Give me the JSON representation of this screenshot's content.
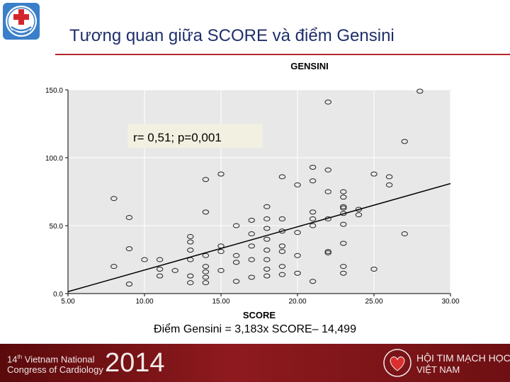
{
  "slide": {
    "title": "Tương quan giữa SCORE và điểm Gensini",
    "equation": "Điểm Gensini = 3,183x SCORE– 14,499",
    "accent_color": "#b5262c"
  },
  "footer": {
    "line1_prefix": "14",
    "line1_sup": "th",
    "line1_rest": " Vietnam National",
    "line2": "Congress of Cardiology",
    "year": "2014",
    "org_line1": "HỘI TIM MẠCH HỌC",
    "org_line2": "VIỆT NAM"
  },
  "chart_data": {
    "type": "scatter",
    "ylabel": "GENSINI",
    "xlabel": "SCORE",
    "xlim": [
      5,
      30
    ],
    "ylim": [
      0,
      150
    ],
    "xticks": [
      "5.00",
      "10.00",
      "15.00",
      "20.00",
      "25.00",
      "30.00"
    ],
    "yticks": [
      "0.0",
      "50.0",
      "100.0",
      "150.0"
    ],
    "annotation": "r= 0,51; p=0,001",
    "background_color": "#e8e8e8",
    "grid": true,
    "fit_line": {
      "slope": 3.183,
      "intercept": -14.499
    },
    "points": [
      [
        8,
        70
      ],
      [
        8,
        20
      ],
      [
        9,
        56
      ],
      [
        9,
        33
      ],
      [
        9,
        7
      ],
      [
        10,
        25
      ],
      [
        11,
        25
      ],
      [
        11,
        18
      ],
      [
        11,
        13
      ],
      [
        12,
        17
      ],
      [
        13,
        42
      ],
      [
        13,
        38
      ],
      [
        13,
        32
      ],
      [
        13,
        25
      ],
      [
        13,
        13
      ],
      [
        13,
        8
      ],
      [
        14,
        84
      ],
      [
        14,
        60
      ],
      [
        14,
        28
      ],
      [
        14,
        20
      ],
      [
        14,
        16
      ],
      [
        14,
        12
      ],
      [
        14,
        8
      ],
      [
        15,
        88
      ],
      [
        15,
        35
      ],
      [
        15,
        31
      ],
      [
        15,
        17
      ],
      [
        16,
        50
      ],
      [
        16,
        28
      ],
      [
        16,
        23
      ],
      [
        16,
        9
      ],
      [
        17,
        54
      ],
      [
        17,
        44
      ],
      [
        17,
        35
      ],
      [
        17,
        25
      ],
      [
        17,
        12
      ],
      [
        18,
        64
      ],
      [
        18,
        55
      ],
      [
        18,
        48
      ],
      [
        18,
        40
      ],
      [
        18,
        32
      ],
      [
        18,
        25
      ],
      [
        18,
        18
      ],
      [
        18,
        13
      ],
      [
        19,
        86
      ],
      [
        19,
        55
      ],
      [
        19,
        46
      ],
      [
        19,
        35
      ],
      [
        19,
        31
      ],
      [
        19,
        20
      ],
      [
        19,
        14
      ],
      [
        20,
        80
      ],
      [
        20,
        45
      ],
      [
        20,
        28
      ],
      [
        20,
        15
      ],
      [
        21,
        93
      ],
      [
        21,
        83
      ],
      [
        21,
        60
      ],
      [
        21,
        55
      ],
      [
        21,
        50
      ],
      [
        21,
        9
      ],
      [
        22,
        141
      ],
      [
        22,
        91
      ],
      [
        22,
        75
      ],
      [
        22,
        55
      ],
      [
        22,
        31
      ],
      [
        22,
        30
      ],
      [
        23,
        75
      ],
      [
        23,
        71
      ],
      [
        23,
        64
      ],
      [
        23,
        63
      ],
      [
        23,
        59
      ],
      [
        23,
        51
      ],
      [
        23,
        37
      ],
      [
        23,
        20
      ],
      [
        23,
        15
      ],
      [
        24,
        62
      ],
      [
        24,
        58
      ],
      [
        25,
        88
      ],
      [
        25,
        18
      ],
      [
        26,
        86
      ],
      [
        26,
        80
      ],
      [
        27,
        112
      ],
      [
        27,
        44
      ],
      [
        28,
        149
      ]
    ]
  }
}
